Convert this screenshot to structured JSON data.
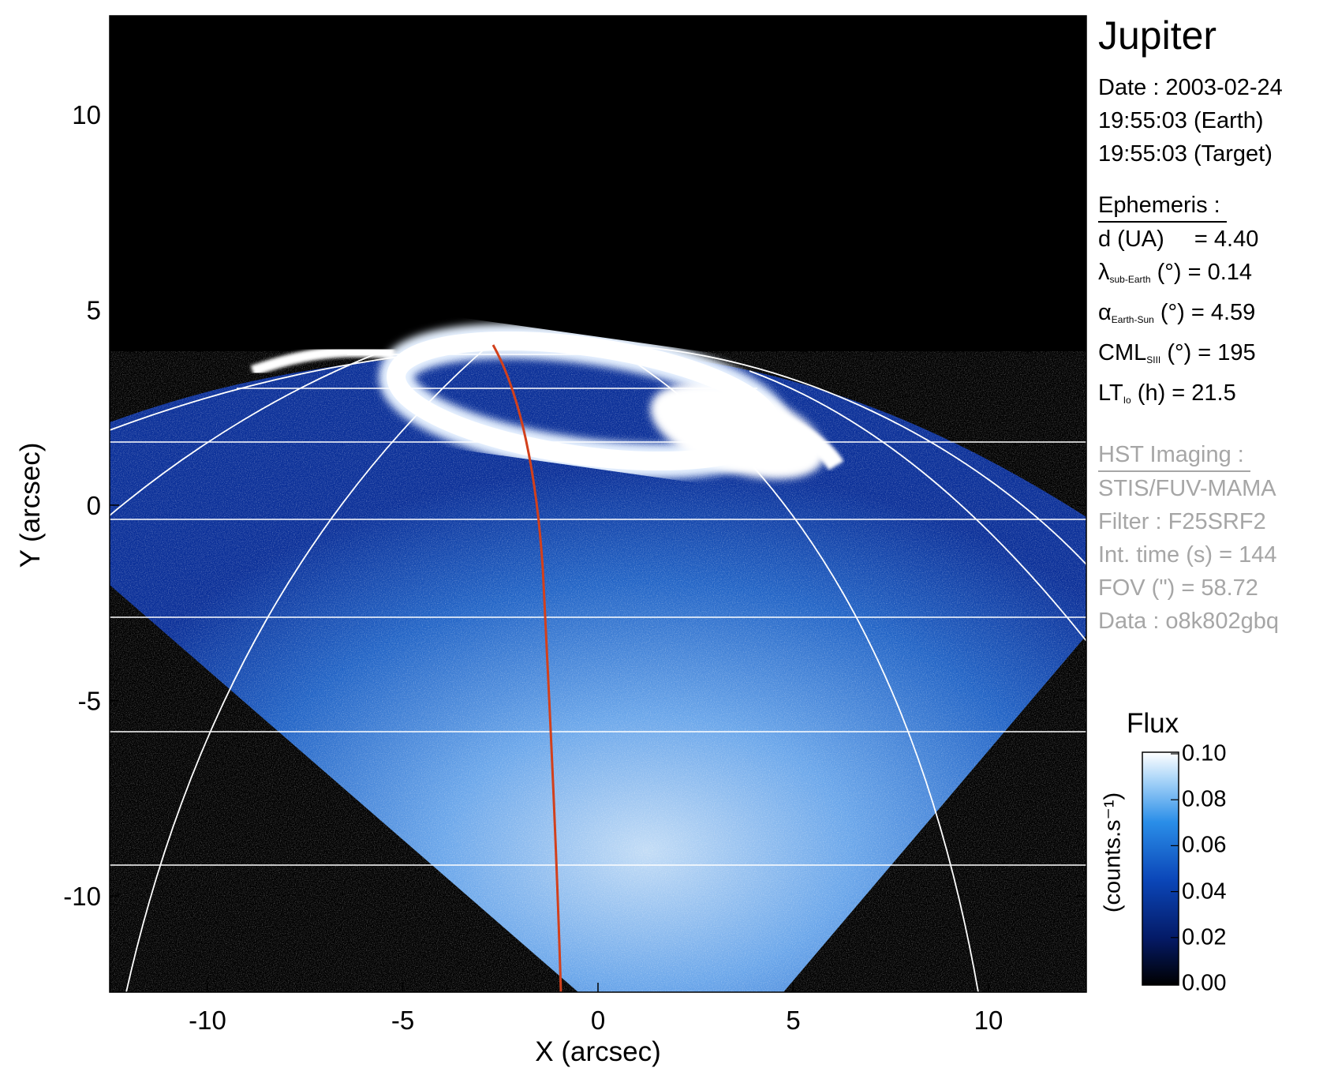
{
  "planet": "Jupiter",
  "observation": {
    "date": "Date : 2003-02-24",
    "time_earth": "19:55:03 (Earth)",
    "time_target": "19:55:03 (Target)"
  },
  "ephemeris": {
    "title": "Ephemeris :",
    "distance": {
      "label": "d (UA)",
      "value": "= 4.40"
    },
    "lat_sub_earth": {
      "symbol": "λ",
      "sub": "sub-Earth",
      "unit": "(°)",
      "value": "= 0.14"
    },
    "phase_angle": {
      "symbol": "α",
      "sub": "Earth-Sun",
      "unit": "(°)",
      "value": "= 4.59"
    },
    "cml": {
      "symbol": "CML",
      "sub": "SIII",
      "unit": "(°)",
      "value": "= 195"
    },
    "local_time_io": {
      "symbol": "LT",
      "sub": "Io",
      "unit": "(h)",
      "value": "= 21.5"
    }
  },
  "hst": {
    "title": "HST Imaging :",
    "instrument": "STIS/FUV-MAMA",
    "filter": "Filter : F25SRF2",
    "int_time": "Int. time (s) = 144",
    "fov": "FOV (\") = 58.72",
    "dataset": "Data : o8k802gbq"
  },
  "axes": {
    "x_title": "X (arcsec)",
    "y_title": "Y (arcsec)",
    "x_ticks": [
      "-10",
      "-5",
      "0",
      "5",
      "10"
    ],
    "y_ticks": [
      "10",
      "5",
      "0",
      "-5",
      "-10"
    ]
  },
  "colorbar": {
    "title": "Flux",
    "unit": "(counts.s⁻¹)",
    "ticks": [
      "0.10",
      "0.08",
      "0.06",
      "0.04",
      "0.02",
      "0.00"
    ]
  },
  "colors": {
    "sky": "#000000",
    "disk_dim": "#0a2a8c",
    "disk_mid": "#2f74d4",
    "aurora": "#ffffff",
    "grid": "#ffffff",
    "meridian": "#d2401c"
  }
}
